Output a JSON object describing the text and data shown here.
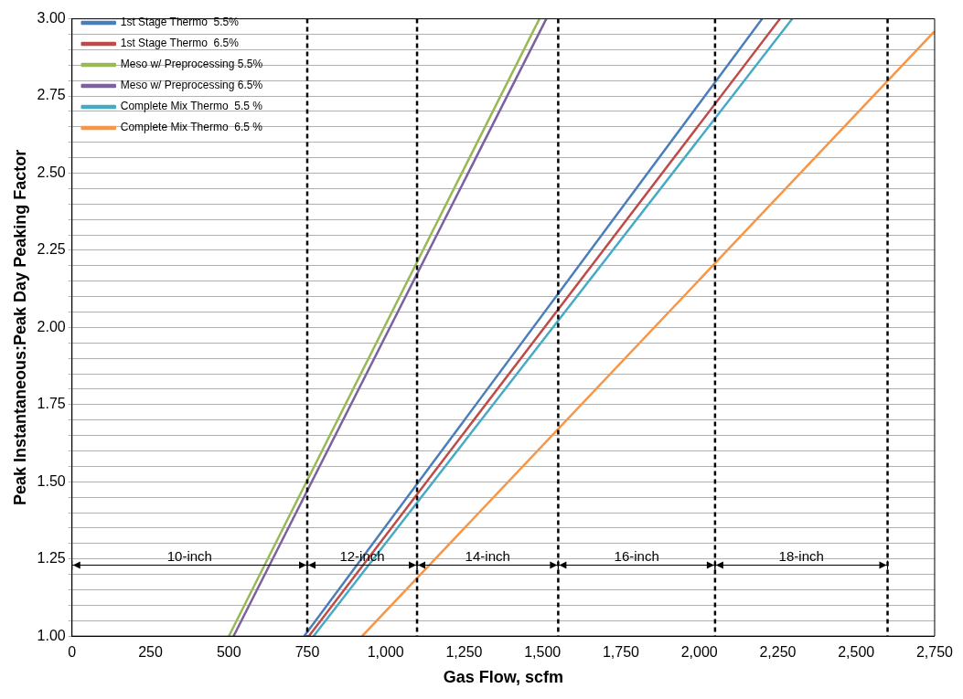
{
  "chart_data": {
    "type": "line",
    "xlabel": "Gas Flow, scfm",
    "ylabel": "Peak Instantaneous:Peak Day Peaking Factor",
    "xlim": [
      0,
      2750
    ],
    "xticks": [
      0,
      250,
      500,
      750,
      {
        "value": 1000,
        "label": "1,000"
      },
      {
        "value": 1250,
        "label": "1,250"
      },
      {
        "value": 1500,
        "label": "1,500"
      },
      {
        "value": 1750,
        "label": "1,750"
      },
      {
        "value": 2000,
        "label": "2,000"
      },
      {
        "value": 2250,
        "label": "2,250"
      },
      {
        "value": 2500,
        "label": "2,500"
      },
      {
        "value": 2750,
        "label": "2,750"
      }
    ],
    "ylim": [
      1,
      3
    ],
    "yticks": [
      {
        "value": 1,
        "label": "1.00"
      },
      {
        "value": 1.05,
        "label": null
      },
      {
        "value": 1.1,
        "label": null
      },
      {
        "value": 1.15,
        "label": null
      },
      {
        "value": 1.2,
        "label": null
      },
      1.25,
      {
        "value": 1.3,
        "label": null
      },
      {
        "value": 1.35,
        "label": null
      },
      {
        "value": 1.4,
        "label": null
      },
      {
        "value": 1.45,
        "label": null
      },
      {
        "value": 1.5,
        "label": "1.50"
      },
      {
        "value": 1.55,
        "label": null
      },
      {
        "value": 1.6,
        "label": null
      },
      {
        "value": 1.65,
        "label": null
      },
      {
        "value": 1.7,
        "label": null
      },
      1.75,
      {
        "value": 1.8,
        "label": null
      },
      {
        "value": 1.85,
        "label": null
      },
      {
        "value": 1.9,
        "label": null
      },
      {
        "value": 1.95,
        "label": null
      },
      {
        "value": 2,
        "label": "2.00"
      },
      {
        "value": 2.05,
        "label": null
      },
      {
        "value": 2.1,
        "label": null
      },
      {
        "value": 2.15,
        "label": null
      },
      {
        "value": 2.2,
        "label": null
      },
      2.25,
      {
        "value": 2.3,
        "label": null
      },
      {
        "value": 2.35,
        "label": null
      },
      {
        "value": 2.4,
        "label": null
      },
      {
        "value": 2.45,
        "label": null
      },
      {
        "value": 2.5,
        "label": "2.50"
      },
      {
        "value": 2.55,
        "label": null
      },
      {
        "value": 2.6,
        "label": null
      },
      {
        "value": 2.65,
        "label": null
      },
      {
        "value": 2.7,
        "label": null
      },
      2.75,
      {
        "value": 2.8,
        "label": null
      },
      {
        "value": 2.85,
        "label": null
      },
      {
        "value": 2.9,
        "label": null
      },
      {
        "value": 2.95,
        "label": null
      },
      {
        "value": 3,
        "label": "3.00"
      }
    ],
    "grid": "y",
    "legend": "top left",
    "marker": "none",
    "line_style": "solid",
    "series": [
      {
        "name": "1st Stage Thermo  5.5%",
        "color": "#4a7ebb",
        "x": [
          740,
          2200
        ],
        "values": [
          1,
          3
        ]
      },
      {
        "name": "1st Stage Thermo  6.5%",
        "color": "#be4b48",
        "x": [
          755,
          2257
        ],
        "values": [
          1,
          3
        ]
      },
      {
        "name": "Meso w/ Preprocessing 5.5%",
        "color": "#98b954",
        "x": [
          500,
          1490
        ],
        "values": [
          1,
          3
        ]
      },
      {
        "name": "Meso w/ Preprocessing 6.5%",
        "color": "#7d60a0",
        "x": [
          515,
          1512
        ],
        "values": [
          1,
          3
        ]
      },
      {
        "name": "Complete Mix Thermo  5.5 %",
        "color": "#46aac5",
        "x": [
          770,
          2296
        ],
        "values": [
          1,
          3
        ]
      },
      {
        "name": "Complete Mix Thermo  6.5 %",
        "color": "#f79646",
        "x": [
          925,
          2750
        ],
        "values": [
          1,
          2.96
        ]
      }
    ],
    "ref_lines": [
      {
        "axis": "x",
        "value": 750,
        "color": "#000000",
        "line_style": "dashed"
      },
      {
        "axis": "x",
        "value": 1100,
        "color": "#000000",
        "line_style": "dashed"
      },
      {
        "axis": "x",
        "value": 1550,
        "color": "#000000",
        "line_style": "dashed"
      },
      {
        "axis": "x",
        "value": 2050,
        "color": "#000000",
        "line_style": "dashed"
      },
      {
        "axis": "x",
        "value": 2600,
        "color": "#000000",
        "line_style": "dashed"
      }
    ],
    "annotations": [
      "10-inch",
      "12-inch",
      "14-inch",
      "16-inch",
      "18-inch"
    ]
  }
}
